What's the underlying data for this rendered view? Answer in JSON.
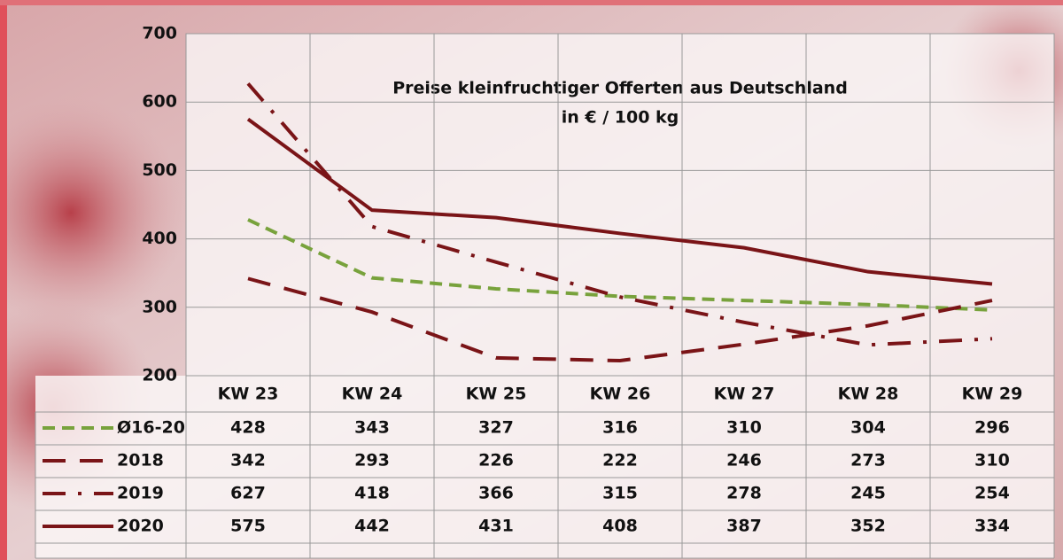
{
  "chart_data": {
    "type": "line",
    "title": "Preise kleinfruchtiger Offerten aus Deutschland",
    "subtitle": "in € / 100 kg",
    "categories": [
      "KW 23",
      "KW 24",
      "KW 25",
      "KW 26",
      "KW 27",
      "KW 28",
      "KW 29"
    ],
    "series": [
      {
        "name": "Ø16-20",
        "color": "#78a23c",
        "dash": "dash",
        "values": [
          428,
          343,
          327,
          316,
          310,
          304,
          296
        ]
      },
      {
        "name": "2018",
        "color": "#7a1417",
        "dash": "longdash",
        "values": [
          342,
          293,
          226,
          222,
          246,
          273,
          310
        ]
      },
      {
        "name": "2019",
        "color": "#7a1417",
        "dash": "dashdot",
        "values": [
          627,
          418,
          366,
          315,
          278,
          245,
          254
        ]
      },
      {
        "name": "2020",
        "color": "#7a1417",
        "dash": "solid",
        "values": [
          575,
          442,
          431,
          408,
          387,
          352,
          334
        ]
      }
    ],
    "ylim": [
      200,
      700
    ],
    "yticks": [
      200,
      300,
      400,
      500,
      600,
      700
    ],
    "grid": true
  }
}
